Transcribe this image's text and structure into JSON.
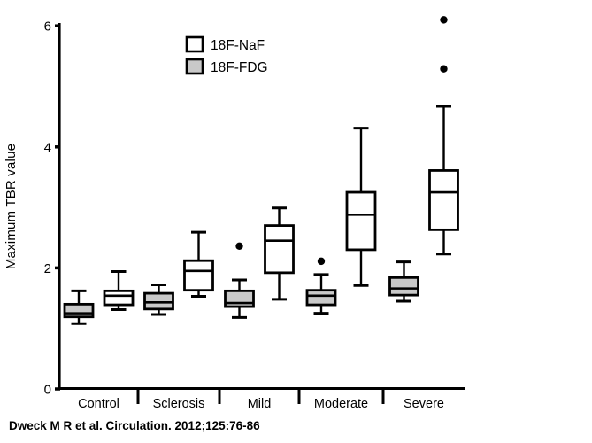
{
  "citation": "Dweck M R et al. Circulation. 2012;125:76-86",
  "chart_data": {
    "type": "boxplot",
    "title": "",
    "xlabel": "",
    "ylabel": "Maximum TBR value",
    "ylim": [
      0,
      6.3
    ],
    "yticks": [
      0,
      2,
      4,
      6
    ],
    "grid": false,
    "legend_position": "top-center-inside",
    "categories": [
      "Control",
      "Sclerosis",
      "Mild",
      "Moderate",
      "Severe"
    ],
    "legend": [
      {
        "name": "18F-NaF",
        "fill": "#ffffff"
      },
      {
        "name": "18F-FDG",
        "fill": "#c9c9c9"
      }
    ],
    "colors": {
      "stroke": "#000000",
      "background": "#ffffff",
      "gray_fill": "#c9c9c9"
    },
    "series": [
      {
        "name": "18F-FDG",
        "fill": "#c9c9c9",
        "position_in_group": "left",
        "boxes": [
          {
            "category": "Control",
            "whislo": 1.08,
            "q1": 1.19,
            "med": 1.25,
            "q3": 1.4,
            "whishi": 1.62,
            "outliers": []
          },
          {
            "category": "Sclerosis",
            "whislo": 1.23,
            "q1": 1.32,
            "med": 1.43,
            "q3": 1.58,
            "whishi": 1.72,
            "outliers": []
          },
          {
            "category": "Mild",
            "whislo": 1.18,
            "q1": 1.36,
            "med": 1.42,
            "q3": 1.62,
            "whishi": 1.8,
            "outliers": [
              2.36
            ]
          },
          {
            "category": "Moderate",
            "whislo": 1.25,
            "q1": 1.39,
            "med": 1.54,
            "q3": 1.63,
            "whishi": 1.89,
            "outliers": [
              2.11
            ]
          },
          {
            "category": "Severe",
            "whislo": 1.45,
            "q1": 1.55,
            "med": 1.66,
            "q3": 1.84,
            "whishi": 2.1,
            "outliers": []
          }
        ]
      },
      {
        "name": "18F-NaF",
        "fill": "#ffffff",
        "position_in_group": "right",
        "boxes": [
          {
            "category": "Control",
            "whislo": 1.31,
            "q1": 1.39,
            "med": 1.54,
            "q3": 1.62,
            "whishi": 1.94,
            "outliers": []
          },
          {
            "category": "Sclerosis",
            "whislo": 1.53,
            "q1": 1.63,
            "med": 1.95,
            "q3": 2.12,
            "whishi": 2.59,
            "outliers": []
          },
          {
            "category": "Mild",
            "whislo": 1.48,
            "q1": 1.92,
            "med": 2.45,
            "q3": 2.7,
            "whishi": 2.99,
            "outliers": []
          },
          {
            "category": "Moderate",
            "whislo": 1.71,
            "q1": 2.3,
            "med": 2.88,
            "q3": 3.25,
            "whishi": 4.31,
            "outliers": []
          },
          {
            "category": "Severe",
            "whislo": 2.23,
            "q1": 2.63,
            "med": 3.25,
            "q3": 3.61,
            "whishi": 4.67,
            "outliers": [
              5.29,
              6.1
            ]
          }
        ]
      }
    ]
  }
}
